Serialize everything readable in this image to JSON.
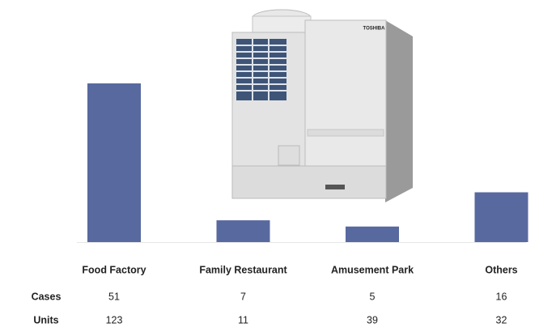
{
  "chart_data": {
    "type": "bar",
    "categories": [
      "Food Factory",
      "Family Restaurant",
      "Amusement Park",
      "Others"
    ],
    "color": "#58699f",
    "series": [
      {
        "name": "Cases",
        "values": [
          51,
          7,
          5,
          16
        ]
      },
      {
        "name": "Units",
        "values": [
          123,
          11,
          39,
          32
        ]
      }
    ],
    "image_text": "TOSHIBA"
  }
}
